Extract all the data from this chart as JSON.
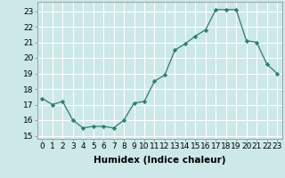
{
  "x": [
    0,
    1,
    2,
    3,
    4,
    5,
    6,
    7,
    8,
    9,
    10,
    11,
    12,
    13,
    14,
    15,
    16,
    17,
    18,
    19,
    20,
    21,
    22,
    23
  ],
  "y": [
    17.4,
    17.0,
    17.2,
    16.0,
    15.5,
    15.6,
    15.6,
    15.5,
    16.0,
    17.1,
    17.2,
    18.5,
    18.9,
    20.5,
    20.9,
    21.4,
    21.8,
    23.1,
    23.1,
    23.1,
    21.1,
    21.0,
    19.6,
    19.0
  ],
  "line_color": "#2e7d6e",
  "marker_color": "#2e7d6e",
  "bg_color": "#cce8e8",
  "grid_color": "#ffffff",
  "grid_minor_color": "#e0f0f0",
  "xlabel": "Humidex (Indice chaleur)",
  "ylim": [
    14.8,
    23.6
  ],
  "yticks": [
    15,
    16,
    17,
    18,
    19,
    20,
    21,
    22,
    23
  ],
  "xticks": [
    0,
    1,
    2,
    3,
    4,
    5,
    6,
    7,
    8,
    9,
    10,
    11,
    12,
    13,
    14,
    15,
    16,
    17,
    18,
    19,
    20,
    21,
    22,
    23
  ],
  "tick_fontsize": 6.5,
  "xlabel_fontsize": 7.5
}
